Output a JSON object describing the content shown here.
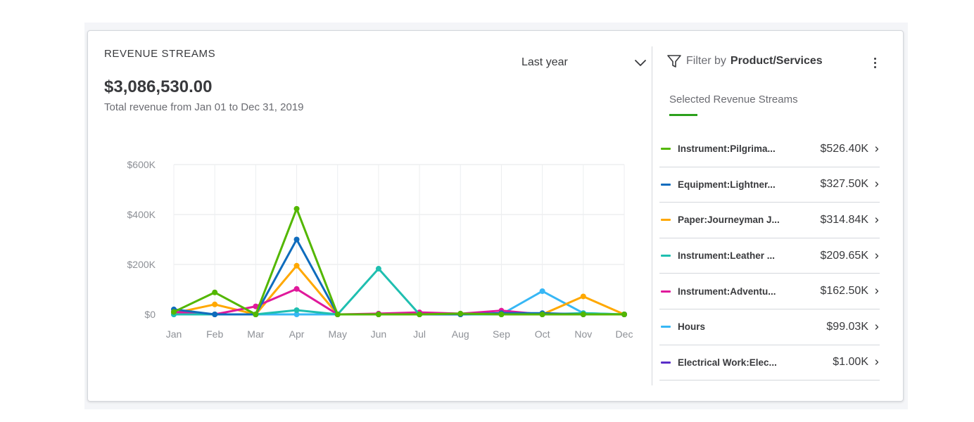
{
  "card": {
    "title": "REVENUE STREAMS",
    "total": "$3,086,530.00",
    "subtitle": "Total revenue from Jan 01 to Dec 31, 2019",
    "period_label": "Last year"
  },
  "filter": {
    "prefix": "Filter by",
    "value": "Product/Services"
  },
  "selected": {
    "title": "Selected Revenue Streams",
    "accent": "#2ca01c"
  },
  "streams": [
    {
      "name": "Instrument:Pilgrima...",
      "value": "$526.40K",
      "color": "#53b700"
    },
    {
      "name": "Equipment:Lightner...",
      "value": "$327.50K",
      "color": "#0f6cbd"
    },
    {
      "name": "Paper:Journeyman J...",
      "value": "$314.84K",
      "color": "#ffa800"
    },
    {
      "name": "Instrument:Leather ...",
      "value": "$209.65K",
      "color": "#1fbfb0"
    },
    {
      "name": "Instrument:Adventu...",
      "value": "$162.50K",
      "color": "#e0199b"
    },
    {
      "name": "Hours",
      "value": "$99.03K",
      "color": "#37b7f5"
    },
    {
      "name": "Electrical Work:Elec...",
      "value": "$1.00K",
      "color": "#5a2ec8"
    }
  ],
  "chart_data": {
    "type": "line",
    "categories": [
      "Jan",
      "Feb",
      "Mar",
      "Apr",
      "May",
      "Jun",
      "Jul",
      "Aug",
      "Sep",
      "Oct",
      "Nov",
      "Dec"
    ],
    "y_ticks": [
      "$0",
      "$200K",
      "$400K",
      "$600K"
    ],
    "ylim": [
      0,
      600
    ],
    "y_unit": "K",
    "grid": true,
    "series": [
      {
        "name": "Hours",
        "color": "#37b7f5",
        "values": [
          0,
          0,
          0,
          0,
          0,
          0,
          0,
          0,
          0,
          93,
          5,
          0
        ]
      },
      {
        "name": "Paper:Journeyman J...",
        "color": "#ffa800",
        "values": [
          5,
          40,
          0,
          195,
          0,
          0,
          0,
          0,
          0,
          0,
          72,
          0
        ]
      },
      {
        "name": "Instrument:Adventu...",
        "color": "#e0199b",
        "values": [
          10,
          0,
          32,
          102,
          0,
          3,
          8,
          3,
          15,
          0,
          0,
          0
        ]
      },
      {
        "name": "Instrument:Leather ...",
        "color": "#1fbfb0",
        "values": [
          0,
          0,
          0,
          17,
          0,
          183,
          0,
          0,
          0,
          0,
          5,
          0
        ]
      },
      {
        "name": "Equipment:Lightner...",
        "color": "#0f6cbd",
        "values": [
          20,
          0,
          0,
          300,
          0,
          0,
          0,
          0,
          5,
          5,
          0,
          0
        ]
      },
      {
        "name": "Instrument:Pilgrima...",
        "color": "#53b700",
        "values": [
          10,
          88,
          0,
          423,
          0,
          0,
          0,
          3,
          0,
          0,
          0,
          0
        ]
      }
    ]
  }
}
